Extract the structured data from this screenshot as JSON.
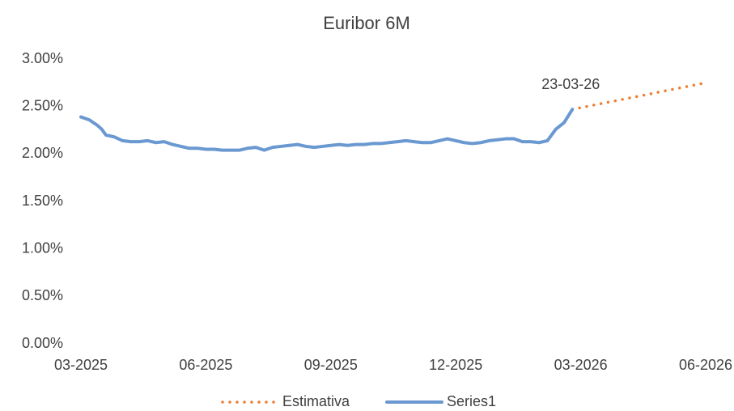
{
  "chart_data": {
    "type": "line",
    "title": "Euribor 6M",
    "annotation": "23-03-26",
    "ylim": [
      0,
      3
    ],
    "yticks": [
      {
        "value": 0,
        "label": "0.00%"
      },
      {
        "value": 0.5,
        "label": "0.50%"
      },
      {
        "value": 1,
        "label": "1.00%"
      },
      {
        "value": 1.5,
        "label": "1.50%"
      },
      {
        "value": 2,
        "label": "2.00%"
      },
      {
        "value": 2.5,
        "label": "2.50%"
      },
      {
        "value": 3,
        "label": "3.00%"
      }
    ],
    "xlim": [
      0,
      15
    ],
    "xticks": [
      {
        "value": 0,
        "label": "03-2025"
      },
      {
        "value": 3,
        "label": "06-2025"
      },
      {
        "value": 6,
        "label": "09-2025"
      },
      {
        "value": 9,
        "label": "12-2025"
      },
      {
        "value": 12,
        "label": "03-2026"
      },
      {
        "value": 15,
        "label": "06-2026"
      }
    ],
    "grid": false,
    "legend": "bottom",
    "series": [
      {
        "name": "Estimativa",
        "color": "#ed7d31",
        "style": "dotted",
        "x": [
          11.8,
          15
        ],
        "values": [
          2.47,
          2.75
        ]
      },
      {
        "name": "Series1",
        "color": "#6a98d0",
        "style": "solid",
        "x": [
          0,
          0.2,
          0.4,
          0.5,
          0.6,
          0.8,
          1.0,
          1.2,
          1.4,
          1.6,
          1.8,
          2.0,
          2.2,
          2.4,
          2.6,
          2.8,
          3.0,
          3.2,
          3.4,
          3.6,
          3.8,
          4.0,
          4.2,
          4.4,
          4.6,
          4.8,
          5.0,
          5.2,
          5.4,
          5.6,
          5.8,
          6.0,
          6.2,
          6.4,
          6.6,
          6.8,
          7.0,
          7.2,
          7.4,
          7.6,
          7.8,
          8.0,
          8.2,
          8.4,
          8.6,
          8.8,
          9.0,
          9.2,
          9.4,
          9.6,
          9.8,
          10.0,
          10.2,
          10.4,
          10.6,
          10.8,
          11.0,
          11.2,
          11.4,
          11.6,
          11.8
        ],
        "values": [
          2.39,
          2.36,
          2.3,
          2.26,
          2.2,
          2.18,
          2.14,
          2.13,
          2.13,
          2.14,
          2.12,
          2.13,
          2.1,
          2.08,
          2.06,
          2.06,
          2.05,
          2.05,
          2.04,
          2.04,
          2.04,
          2.06,
          2.07,
          2.04,
          2.07,
          2.08,
          2.09,
          2.1,
          2.08,
          2.07,
          2.08,
          2.09,
          2.1,
          2.09,
          2.1,
          2.1,
          2.11,
          2.11,
          2.12,
          2.13,
          2.14,
          2.13,
          2.12,
          2.12,
          2.14,
          2.16,
          2.14,
          2.12,
          2.11,
          2.12,
          2.14,
          2.15,
          2.16,
          2.16,
          2.13,
          2.13,
          2.12,
          2.14,
          2.26,
          2.33,
          2.47
        ]
      }
    ]
  }
}
